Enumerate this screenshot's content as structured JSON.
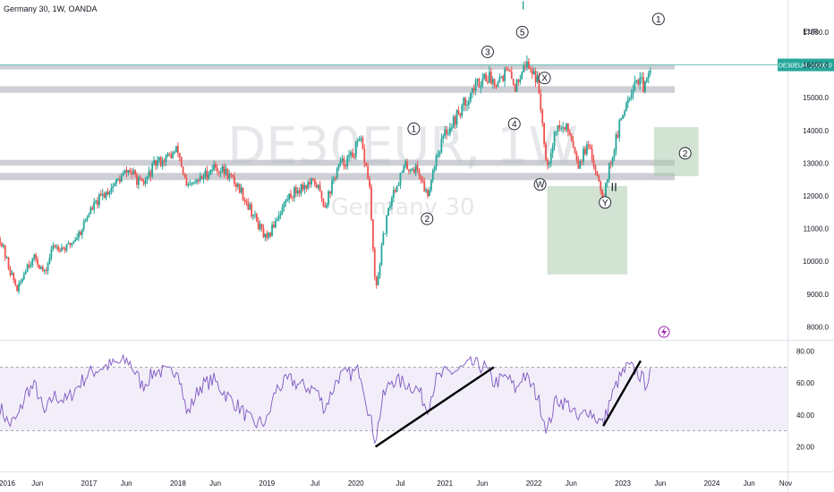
{
  "header": {
    "title": "Germany 30, 1W, OANDA"
  },
  "watermark": {
    "symbol": "DE30EUR, 1W",
    "name": "Germany 30"
  },
  "chart_data": {
    "type": "candlestick",
    "title": "Germany 30, 1W, OANDA",
    "currency": "EUR",
    "price_axis": {
      "ylim": [
        7600,
        17600
      ],
      "ticks": [
        "17000.0",
        "16000.0",
        "15000.0",
        "14000.0",
        "13000.0",
        "12000.0",
        "11000.0",
        "10000.0",
        "9000.0",
        "8000.0"
      ]
    },
    "last_price": {
      "symbol": "DE30EUR",
      "value": "16000.0"
    },
    "time_axis": {
      "labels": [
        "2016",
        "Jun",
        "2017",
        "Jun",
        "2018",
        "Jun",
        "2019",
        "Jun",
        "Jul",
        "2020",
        "Jul",
        "2021",
        "Jun",
        "2022",
        "Jun",
        "Jul",
        "2023",
        "Jun",
        "2024",
        "Jun",
        "Nov"
      ]
    },
    "price_path": [
      [
        2016.0,
        10700
      ],
      [
        2016.1,
        9800
      ],
      [
        2016.2,
        9100
      ],
      [
        2016.3,
        9900
      ],
      [
        2016.4,
        10100
      ],
      [
        2016.5,
        9600
      ],
      [
        2016.6,
        10500
      ],
      [
        2016.75,
        10400
      ],
      [
        2016.9,
        10900
      ],
      [
        2017.0,
        11500
      ],
      [
        2017.15,
        12000
      ],
      [
        2017.3,
        12400
      ],
      [
        2017.45,
        12800
      ],
      [
        2017.6,
        12300
      ],
      [
        2017.75,
        13000
      ],
      [
        2017.9,
        13200
      ],
      [
        2018.0,
        13400
      ],
      [
        2018.1,
        12200
      ],
      [
        2018.25,
        12500
      ],
      [
        2018.4,
        12900
      ],
      [
        2018.55,
        12700
      ],
      [
        2018.7,
        12200
      ],
      [
        2018.85,
        11400
      ],
      [
        2019.0,
        10600
      ],
      [
        2019.1,
        11300
      ],
      [
        2019.25,
        12000
      ],
      [
        2019.4,
        12300
      ],
      [
        2019.55,
        12400
      ],
      [
        2019.65,
        11700
      ],
      [
        2019.8,
        12900
      ],
      [
        2019.95,
        13200
      ],
      [
        2020.05,
        13700
      ],
      [
        2020.15,
        12400
      ],
      [
        2020.22,
        9000
      ],
      [
        2020.3,
        10600
      ],
      [
        2020.4,
        12000
      ],
      [
        2020.55,
        12900
      ],
      [
        2020.7,
        12800
      ],
      [
        2020.8,
        12000
      ],
      [
        2020.9,
        13200
      ],
      [
        2021.0,
        13900
      ],
      [
        2021.15,
        14500
      ],
      [
        2021.3,
        15200
      ],
      [
        2021.45,
        15700
      ],
      [
        2021.55,
        15500
      ],
      [
        2021.7,
        15800
      ],
      [
        2021.8,
        15300
      ],
      [
        2021.88,
        16100
      ],
      [
        2022.0,
        15800
      ],
      [
        2022.05,
        15400
      ],
      [
        2022.15,
        12900
      ],
      [
        2022.25,
        14100
      ],
      [
        2022.4,
        14000
      ],
      [
        2022.5,
        13000
      ],
      [
        2022.6,
        13500
      ],
      [
        2022.7,
        12800
      ],
      [
        2022.78,
        12000
      ],
      [
        2022.85,
        12900
      ],
      [
        2022.95,
        14000
      ],
      [
        2023.05,
        15000
      ],
      [
        2023.15,
        15600
      ],
      [
        2023.25,
        15300
      ],
      [
        2023.32,
        15900
      ]
    ],
    "zones": [
      {
        "name": "resistance",
        "from": 16000,
        "to": 15860
      },
      {
        "name": "resistance",
        "from": 15350,
        "to": 15150
      },
      {
        "name": "support",
        "from": 13100,
        "to": 12920
      },
      {
        "name": "support",
        "from": 12700,
        "to": 12480
      }
    ],
    "target_boxes": [
      {
        "x": [
          2023.35,
          2023.85
        ],
        "y": [
          12600,
          14100
        ]
      },
      {
        "x": [
          2022.15,
          2023.05
        ],
        "y": [
          9600,
          12300
        ]
      }
    ],
    "wave_labels": [
      {
        "text": "1",
        "x": 2020.65,
        "y": 14050
      },
      {
        "text": "2",
        "x": 2020.8,
        "y": 11300
      },
      {
        "text": "3",
        "x": 2021.48,
        "y": 16400
      },
      {
        "text": "4",
        "x": 2021.78,
        "y": 14200
      },
      {
        "text": "5",
        "x": 2021.87,
        "y": 17000
      },
      {
        "text": "X",
        "x": 2022.12,
        "y": 15600
      },
      {
        "text": "W",
        "x": 2022.07,
        "y": 12350
      },
      {
        "text": "Y",
        "x": 2022.8,
        "y": 11800
      },
      {
        "text": "1",
        "x": 2023.4,
        "y": 17400
      },
      {
        "text": "2",
        "x": 2023.7,
        "y": 13300
      }
    ],
    "degree_marks": [
      {
        "text": "I",
        "x": 2021.88,
        "y": 17700
      },
      {
        "text": "II",
        "x": 2022.9,
        "y": 12150
      }
    ],
    "rsi": {
      "ylim": [
        14,
        86
      ],
      "ticks": [
        "80.00",
        "60.00",
        "40.00",
        "20.00"
      ],
      "band": [
        30,
        70
      ],
      "path": [
        [
          2016.0,
          45
        ],
        [
          2016.1,
          34
        ],
        [
          2016.2,
          38
        ],
        [
          2016.3,
          55
        ],
        [
          2016.4,
          58
        ],
        [
          2016.5,
          40
        ],
        [
          2016.6,
          52
        ],
        [
          2016.75,
          49
        ],
        [
          2016.9,
          60
        ],
        [
          2017.0,
          66
        ],
        [
          2017.15,
          70
        ],
        [
          2017.3,
          72
        ],
        [
          2017.45,
          74
        ],
        [
          2017.6,
          58
        ],
        [
          2017.75,
          68
        ],
        [
          2017.9,
          66
        ],
        [
          2018.0,
          70
        ],
        [
          2018.1,
          40
        ],
        [
          2018.25,
          58
        ],
        [
          2018.4,
          62
        ],
        [
          2018.55,
          52
        ],
        [
          2018.7,
          44
        ],
        [
          2018.85,
          34
        ],
        [
          2019.0,
          36
        ],
        [
          2019.1,
          56
        ],
        [
          2019.25,
          62
        ],
        [
          2019.4,
          58
        ],
        [
          2019.55,
          56
        ],
        [
          2019.65,
          44
        ],
        [
          2019.8,
          64
        ],
        [
          2019.95,
          66
        ],
        [
          2020.05,
          68
        ],
        [
          2020.15,
          40
        ],
        [
          2020.22,
          24
        ],
        [
          2020.3,
          50
        ],
        [
          2020.4,
          62
        ],
        [
          2020.55,
          60
        ],
        [
          2020.7,
          56
        ],
        [
          2020.8,
          44
        ],
        [
          2020.9,
          62
        ],
        [
          2021.0,
          66
        ],
        [
          2021.15,
          68
        ],
        [
          2021.3,
          72
        ],
        [
          2021.45,
          70
        ],
        [
          2021.55,
          60
        ],
        [
          2021.7,
          64
        ],
        [
          2021.8,
          55
        ],
        [
          2021.88,
          66
        ],
        [
          2022.0,
          56
        ],
        [
          2022.05,
          50
        ],
        [
          2022.15,
          30
        ],
        [
          2022.25,
          50
        ],
        [
          2022.4,
          46
        ],
        [
          2022.5,
          36
        ],
        [
          2022.6,
          44
        ],
        [
          2022.7,
          38
        ],
        [
          2022.78,
          34
        ],
        [
          2022.85,
          48
        ],
        [
          2022.95,
          62
        ],
        [
          2023.05,
          70
        ],
        [
          2023.15,
          68
        ],
        [
          2023.25,
          60
        ],
        [
          2023.32,
          66
        ]
      ]
    },
    "trendlines": [
      {
        "pane": "rsi",
        "from": [
          2020.22,
          20
        ],
        "to": [
          2021.55,
          70
        ]
      },
      {
        "pane": "rsi",
        "from": [
          2022.78,
          33
        ],
        "to": [
          2023.2,
          74
        ]
      }
    ]
  }
}
